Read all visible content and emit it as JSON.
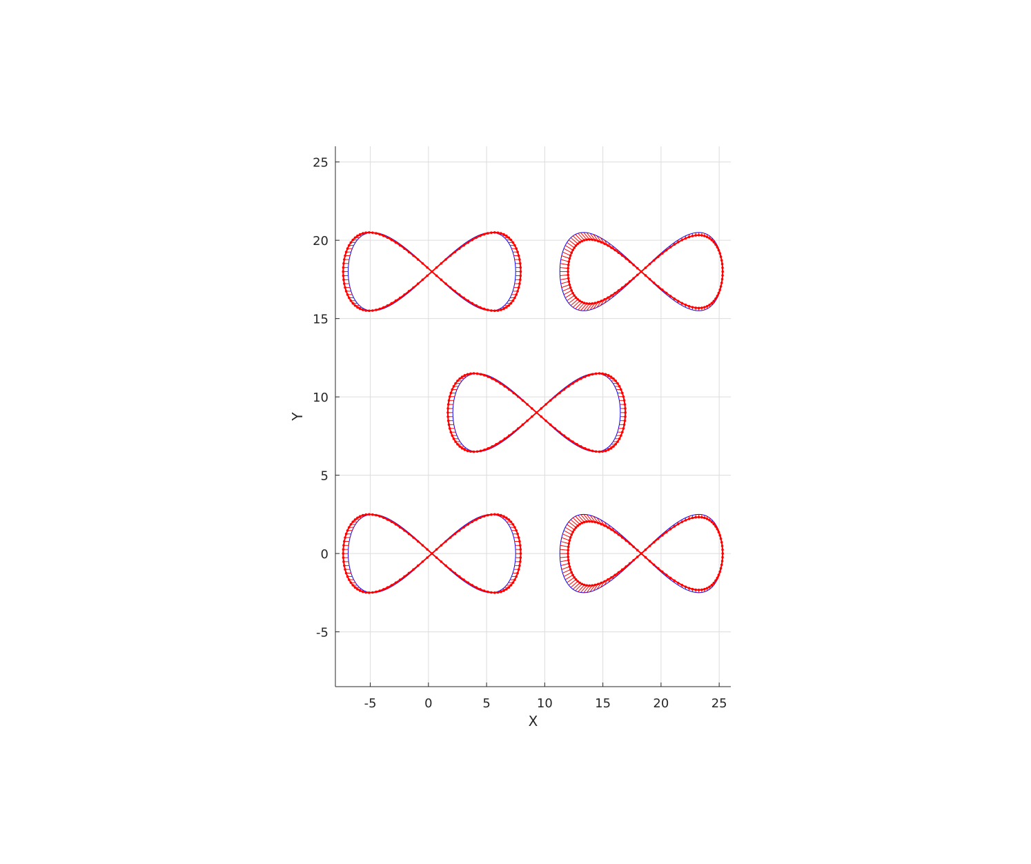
{
  "chart_data": {
    "type": "line",
    "title": "",
    "xlabel": "X",
    "ylabel": "Y",
    "xlim": [
      -8,
      26
    ],
    "ylim": [
      -8.5,
      26
    ],
    "xticks": [
      -5,
      0,
      5,
      10,
      15,
      20,
      25
    ],
    "xtick_labels": [
      "-5",
      "0",
      "5",
      "10",
      "15",
      "20",
      "25"
    ],
    "yticks": [
      -5,
      0,
      5,
      10,
      15,
      20,
      25
    ],
    "ytick_labels": [
      "-5",
      "0",
      "5",
      "10",
      "15",
      "20",
      "25"
    ],
    "grid": true,
    "legend": false,
    "colors": {
      "reference": "#0000ff",
      "arrows": "#ff0000",
      "grid": "#dcdcdc",
      "axis": "#262626"
    },
    "series": [
      {
        "kind": "lemniscate-symmetric",
        "center": [
          0.3,
          18
        ],
        "half_width": 7.2,
        "half_height": 2.5,
        "arrow_scale": 0.6
      },
      {
        "kind": "lemniscate-distorted",
        "center": [
          18.3,
          18
        ],
        "half_width": 7.0,
        "half_height": 2.5,
        "arrow_scale": 0.6
      },
      {
        "kind": "lemniscate-symmetric",
        "center": [
          9.3,
          9
        ],
        "half_width": 7.2,
        "half_height": 2.5,
        "arrow_scale": 0.6
      },
      {
        "kind": "lemniscate-symmetric",
        "center": [
          0.3,
          0
        ],
        "half_width": 7.2,
        "half_height": 2.5,
        "arrow_scale": 0.6
      },
      {
        "kind": "lemniscate-distorted",
        "center": [
          18.3,
          0
        ],
        "half_width": 7.0,
        "half_height": 2.5,
        "arrow_scale": 0.6
      }
    ]
  }
}
